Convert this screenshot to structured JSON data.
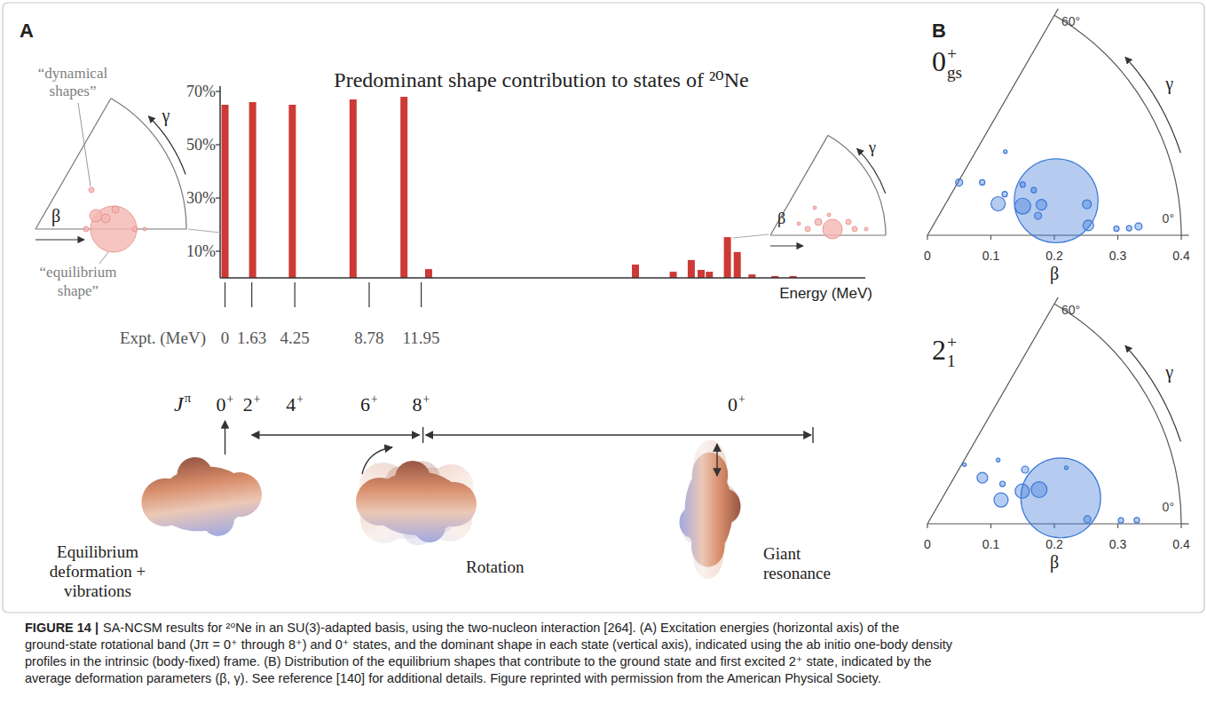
{
  "panel_labels": [
    "A",
    "B"
  ],
  "chart_data": [
    {
      "type": "bar",
      "title": "Predominant shape contribution to states of ²⁰Ne",
      "xlabel": "Energy (MeV)",
      "x": [
        0,
        1.68,
        4.1,
        7.8,
        10.9,
        12.4,
        25.0,
        27.3,
        28.4,
        29.0,
        29.5,
        30.6,
        31.2,
        32.1,
        33.5,
        34.6
      ],
      "values": [
        65,
        66,
        65,
        67,
        68,
        3.3,
        5,
        2.3,
        6.7,
        3,
        2.3,
        15.3,
        9.7,
        1.3,
        0.7,
        0.7
      ],
      "color": "#cd3a36",
      "xlim": [
        -0.3,
        39
      ],
      "ylim": [
        0,
        72
      ],
      "yticks": [
        {
          "value": 10,
          "label": "10%"
        },
        {
          "value": 30,
          "label": "30%"
        },
        {
          "value": 50,
          "label": "50%"
        },
        {
          "value": 70,
          "label": "70%"
        }
      ],
      "tick_labels": "y",
      "grid": false
    },
    {
      "type": "bubble",
      "title": "0+gs",
      "xlabel": "β",
      "ylabel": "γ",
      "x": [
        0.097,
        0.12,
        0.17,
        0.138,
        0.122,
        0.157,
        0.186,
        0.177,
        0.21,
        0.256,
        0.254,
        0.298,
        0.318,
        0.333,
        0.18,
        0.182
      ],
      "values": [
        59,
        44,
        28,
        28,
        24,
        17,
        15,
        10,
        15,
        11,
        3.5,
        2,
        2,
        2.4,
        47,
        23
      ],
      "size": [
        0.46,
        0.26,
        0.26,
        0.26,
        1.84,
        2.3,
        1.03,
        0.46,
        64,
        0.72,
        1.03,
        0.26,
        0.26,
        0.46,
        0.12,
        0.26
      ],
      "color": "#3c78d8",
      "xlim": [
        0,
        0.4
      ],
      "ylim": [
        0,
        60
      ],
      "xticks": [
        0,
        0.1,
        0.2,
        0.3,
        0.4
      ],
      "yticks": [
        {
          "value": 0,
          "label": "0°"
        },
        {
          "value": 60,
          "label": "60°"
        }
      ]
    },
    {
      "type": "bubble",
      "title": "2+1",
      "xlabel": "β",
      "ylabel": "γ",
      "x": [
        0.11,
        0.113,
        0.134,
        0.122,
        0.176,
        0.158,
        0.184,
        0.214,
        0.236,
        0.252,
        0.305,
        0.33,
        0.15
      ],
      "values": [
        58,
        40,
        28,
        18,
        29,
        19,
        17,
        11,
        22,
        1.6,
        1,
        1,
        42
      ],
      "size": [
        0.12,
        1.03,
        0.26,
        1.84,
        0.46,
        1.84,
        2.3,
        58,
        0.12,
        0.46,
        0.26,
        0.26,
        0.12
      ],
      "color": "#3c78d8",
      "xlim": [
        0,
        0.4
      ],
      "ylim": [
        0,
        60
      ],
      "xticks": [
        0,
        0.1,
        0.2,
        0.3,
        0.4
      ],
      "yticks": [
        {
          "value": 0,
          "label": "0°"
        },
        {
          "value": 60,
          "label": "60°"
        }
      ]
    }
  ],
  "experiment": {
    "label": "Expt. (MeV)",
    "energies": [
      0,
      1.63,
      4.25,
      8.78,
      11.95
    ]
  },
  "spins": {
    "label": "Jπ",
    "states": [
      "0+",
      "2+",
      "4+",
      "6+",
      "8+",
      "0+"
    ]
  },
  "modes": [
    "Equilibrium deformation + vibrations",
    "Rotation",
    "Giant resonance"
  ],
  "insets": {
    "dynamical": "“dynamical shapes”",
    "equilibrium": "“equilibrium shape”",
    "beta": "β",
    "gamma": "γ"
  },
  "caption": {
    "label": "FIGURE 14 |",
    "lines": [
      "SA-NCSM results for ²⁰Ne in an SU(3)-adapted basis, using the two-nucleon interaction [264]. (A) Excitation energies (horizontal axis) of the",
      "ground-state rotational band (Jπ = 0⁺ through 8⁺) and 0⁺ states, and the dominant shape in each state (vertical axis), indicated using the ab initio one-body density",
      "profiles in the intrinsic (body-fixed) frame. (B) Distribution of the equilibrium shapes that contribute to the ground state and first excited 2⁺ state, indicated by the",
      "average deformation parameters (β, γ). See reference [140] for additional details. Figure reprinted with permission from the American Physical Society."
    ]
  }
}
